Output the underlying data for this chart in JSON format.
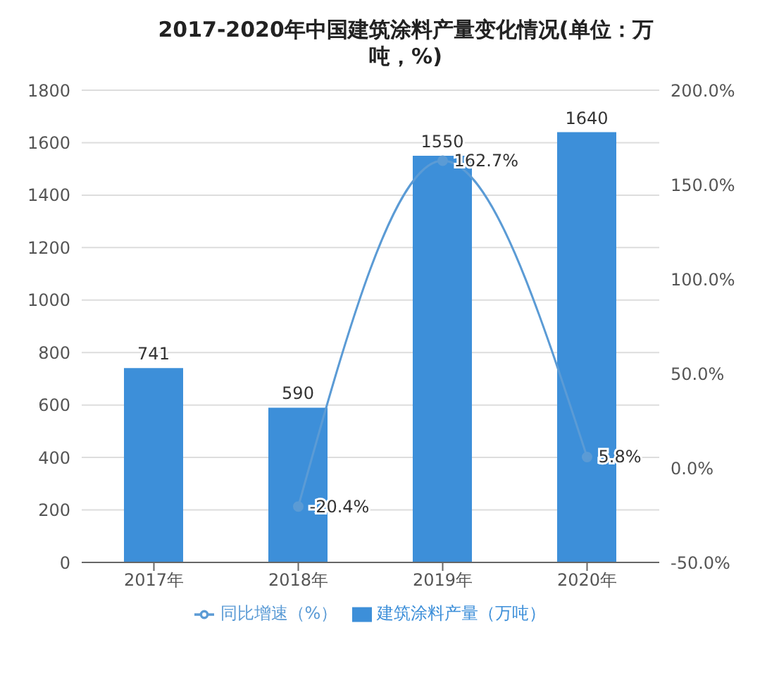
{
  "chart_data": {
    "type": "bar",
    "title": "2017-2020年中国建筑涂料产量变化情况(单位：万吨，%)",
    "categories": [
      "2017年",
      "2018年",
      "2019年",
      "2020年"
    ],
    "series": [
      {
        "name": "建筑涂料产量（万吨）",
        "color": "#3d8fd9",
        "values": [
          741,
          590,
          1550,
          1640
        ],
        "value_labels": [
          "741",
          "590",
          "1550",
          "1640"
        ]
      },
      {
        "name": "同比增速（%）",
        "type": "line",
        "axis": "y2",
        "color": "#5b9bd5",
        "marker": "circle",
        "values": [
          null,
          -20.4,
          162.7,
          5.8
        ],
        "value_labels": [
          null,
          "-20.4%",
          "162.7%",
          "5.8%"
        ]
      }
    ],
    "ylim": [
      0,
      1800
    ],
    "yticks": [
      0,
      200,
      400,
      600,
      800,
      1000,
      1200,
      1400,
      1600,
      1800
    ],
    "y2lim": [
      -50,
      200
    ],
    "y2ticks": [
      {
        "value": -50,
        "label": "-50.0%"
      },
      {
        "value": 0,
        "label": "0.0%"
      },
      {
        "value": 50,
        "label": "50.0%"
      },
      {
        "value": 100,
        "label": "100.0%"
      },
      {
        "value": 150,
        "label": "150.0%"
      },
      {
        "value": 200,
        "label": "200.0%"
      }
    ],
    "grid": "y",
    "legend": "bottom"
  }
}
